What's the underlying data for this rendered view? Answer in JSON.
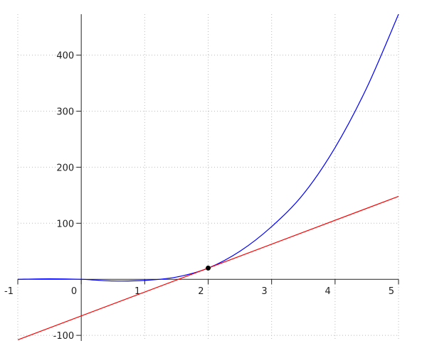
{
  "chart_data": {
    "type": "line",
    "title": "",
    "xlabel": "",
    "ylabel": "",
    "xlim": [
      -1,
      5
    ],
    "ylim": [
      -110,
      473
    ],
    "grid": true,
    "x_ticks": [
      -1,
      0,
      1,
      2,
      3,
      4,
      5
    ],
    "x_tick_labels": [
      "-1",
      "0",
      "1",
      "2",
      "3",
      "4",
      "5"
    ],
    "y_ticks": [
      -100,
      100,
      200,
      300,
      400
    ],
    "y_tick_labels": [
      "-100",
      "100",
      "200",
      "300",
      "400"
    ],
    "series": [
      {
        "color": "#0000ff",
        "x": [
          -1,
          -0.5,
          0,
          0.5,
          1,
          1.5,
          2,
          2.5,
          3,
          3.5,
          4,
          4.5,
          5
        ],
        "y": [
          0,
          1,
          0,
          -3,
          -2,
          4,
          20,
          50,
          94,
          152,
          235,
          342,
          473
        ]
      },
      {
        "color": "#ff0000",
        "x": [
          -1,
          5
        ],
        "y": [
          -108,
          148
        ]
      }
    ],
    "point": {
      "x": 2,
      "y": 20,
      "color": "#000000"
    }
  }
}
